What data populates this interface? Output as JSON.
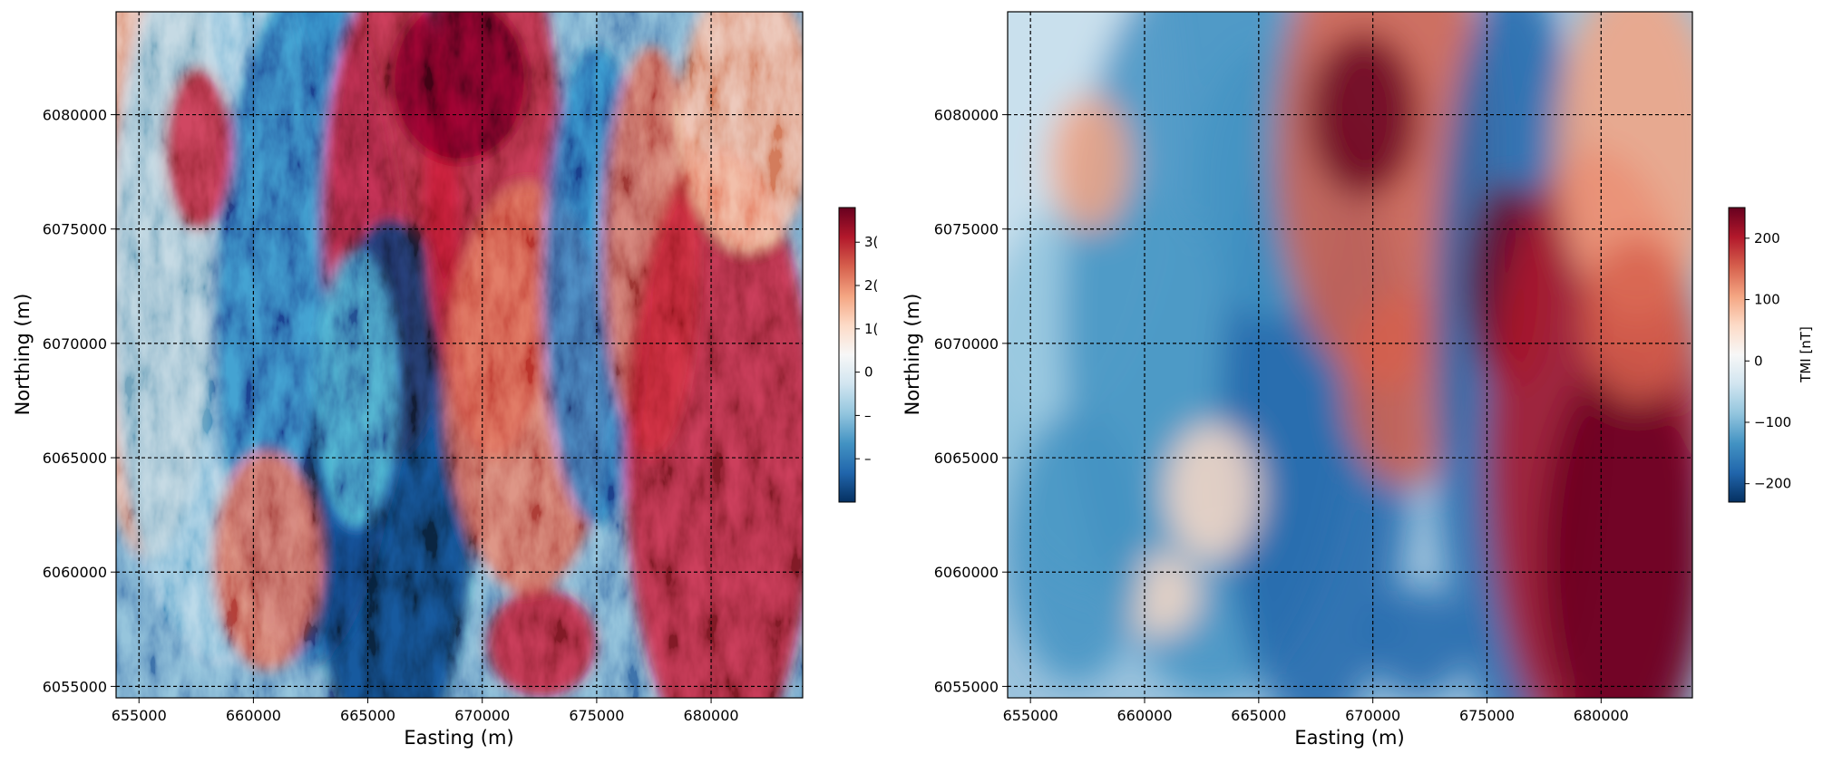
{
  "chart_data": [
    {
      "type": "heatmap",
      "title": "",
      "xlabel": "Easting (m)",
      "ylabel": "Northing (m)",
      "xlim": [
        654000,
        684000
      ],
      "ylim": [
        6054500,
        6084500
      ],
      "xticks": [
        655000,
        660000,
        665000,
        670000,
        675000,
        680000
      ],
      "xtick_labels": [
        "655000",
        "660000",
        "665000",
        "670000",
        "675000",
        "680000"
      ],
      "yticks": [
        6055000,
        6060000,
        6065000,
        6070000,
        6075000,
        6080000
      ],
      "ytick_labels": [
        "6055000",
        "6060000",
        "6065000",
        "6070000",
        "6075000",
        "6080000"
      ],
      "grid": true,
      "colormap": "RdBu_r",
      "shading": "hillshade",
      "colorbar": {
        "label": "",
        "range": [
          -300,
          380
        ],
        "ticks": [
          -200,
          -100,
          0,
          100,
          200,
          300
        ],
        "tick_labels": [
          "–",
          "–",
          "0",
          "1(",
          "2(",
          "3("
        ]
      }
    },
    {
      "type": "heatmap",
      "title": "",
      "xlabel": "Easting (m)",
      "ylabel": "Northing (m)",
      "xlim": [
        654000,
        684000
      ],
      "ylim": [
        6054500,
        6084500
      ],
      "xticks": [
        655000,
        660000,
        665000,
        670000,
        675000,
        680000
      ],
      "xtick_labels": [
        "655000",
        "660000",
        "665000",
        "670000",
        "675000",
        "680000"
      ],
      "yticks": [
        6055000,
        6060000,
        6065000,
        6070000,
        6075000,
        6080000
      ],
      "ytick_labels": [
        "6055000",
        "6060000",
        "6065000",
        "6070000",
        "6075000",
        "6080000"
      ],
      "grid": true,
      "colormap": "RdBu_r",
      "shading": "none",
      "colorbar": {
        "label": "TMI [nT]",
        "range": [
          -230,
          250
        ],
        "ticks": [
          -200,
          -100,
          0,
          100,
          200
        ],
        "tick_labels": [
          "−200",
          "−100",
          "0",
          "100",
          "200"
        ]
      }
    }
  ]
}
